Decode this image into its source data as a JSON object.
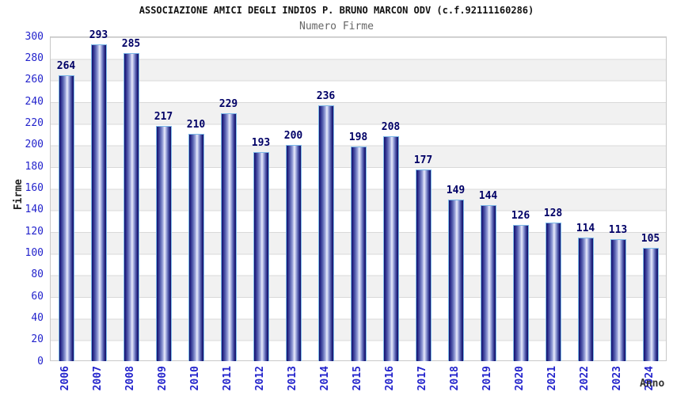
{
  "chart_data": {
    "type": "bar",
    "title": "ASSOCIAZIONE AMICI DEGLI INDIOS P. BRUNO MARCON ODV (c.f.92111160286)",
    "subtitle": "Numero Firme",
    "xlabel": "Anno",
    "ylabel": "Firme",
    "categories": [
      "2006",
      "2007",
      "2008",
      "2009",
      "2010",
      "2011",
      "2012",
      "2013",
      "2014",
      "2015",
      "2016",
      "2017",
      "2018",
      "2019",
      "2020",
      "2021",
      "2022",
      "2023",
      "2024"
    ],
    "values": [
      264,
      293,
      285,
      217,
      210,
      229,
      193,
      200,
      236,
      198,
      208,
      177,
      149,
      144,
      126,
      128,
      114,
      113,
      105
    ],
    "ylim": [
      0,
      300
    ],
    "yticks": [
      0,
      20,
      40,
      60,
      80,
      100,
      120,
      140,
      160,
      180,
      200,
      220,
      240,
      260,
      280,
      300
    ],
    "grid": "horizontal-bands-alternating",
    "legend": "none",
    "colors": {
      "tick_label_blue": "#2323cc",
      "value_label_navy": "#000066",
      "bar_dark": "#12126a",
      "bar_highlight": "#e9ecfb",
      "bar_border": "#7db9e8",
      "band_gray": "#f1f1f1",
      "gridline": "#d9d9d9",
      "title_color": "#111111",
      "subtitle_color": "#666666"
    }
  }
}
